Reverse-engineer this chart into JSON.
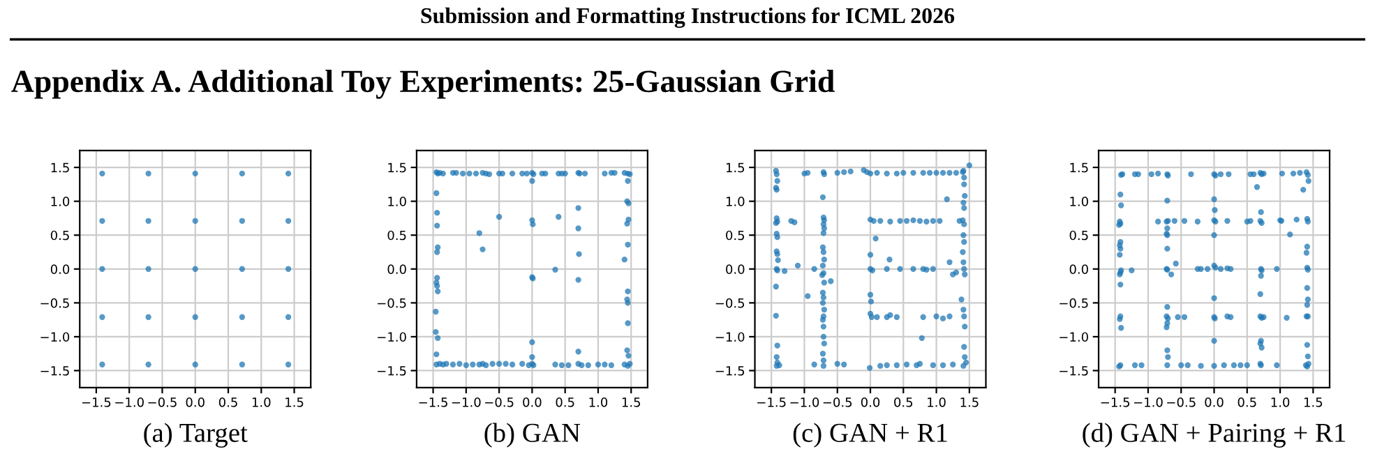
{
  "chart_data": [
    {
      "type": "scatter",
      "xlabel": "(a) Target",
      "annotations": [
        "Submission and Formatting Instructions for ICML 2026",
        "Appendix A. Additional Toy Experiments: 25-Gaussian Grid"
      ],
      "xlim": [
        -1.75,
        1.75
      ],
      "ylim": [
        -1.75,
        1.75
      ],
      "xticks": [
        {
          "value": -1.5,
          "label": "−1.5"
        },
        {
          "value": -1.0,
          "label": "−1.0"
        },
        {
          "value": -0.5,
          "label": "−0.5"
        },
        {
          "value": 0,
          "label": "0.0"
        },
        {
          "value": 0.5,
          "label": "0.5"
        },
        {
          "value": 1,
          "label": "1.0"
        },
        {
          "value": 1.5,
          "label": "1.5"
        }
      ],
      "yticks": [
        {
          "value": -1.5,
          "label": "−1.5"
        },
        {
          "value": -1.0,
          "label": "−1.0"
        },
        {
          "value": -0.5,
          "label": "−0.5"
        },
        {
          "value": 0,
          "label": "0.0"
        },
        {
          "value": 0.5,
          "label": "0.5"
        },
        {
          "value": 1,
          "label": "1.0"
        },
        {
          "value": 1.5,
          "label": "1.5"
        }
      ],
      "grid": true,
      "marker": "circle",
      "series": [
        {
          "color": "#1f77b4",
          "x": [
            -1.41,
            -0.71,
            0,
            0.71,
            1.41,
            -1.41,
            -0.71,
            0,
            0.71,
            1.41,
            -1.41,
            -0.71,
            0,
            0.71,
            1.41,
            -1.41,
            -0.71,
            0,
            0.71,
            1.41,
            -1.41,
            -0.71,
            0,
            0.71,
            1.41
          ],
          "values": [
            1.41,
            1.41,
            1.41,
            1.41,
            1.41,
            0.71,
            0.71,
            0.71,
            0.71,
            0.71,
            0,
            0,
            0,
            0,
            0,
            -0.71,
            -0.71,
            -0.71,
            -0.71,
            -0.71,
            -1.41,
            -1.41,
            -1.41,
            -1.41,
            -1.41
          ]
        }
      ]
    },
    {
      "type": "scatter",
      "xlabel": "(b) GAN",
      "xlim": [
        -1.75,
        1.75
      ],
      "ylim": [
        -1.75,
        1.75
      ],
      "xticks": [
        {
          "value": -1.5,
          "label": "−1.5"
        },
        {
          "value": -1.0,
          "label": "−1.0"
        },
        {
          "value": -0.5,
          "label": "−0.5"
        },
        {
          "value": 0,
          "label": "0.0"
        },
        {
          "value": 0.5,
          "label": "0.5"
        },
        {
          "value": 1,
          "label": "1.0"
        },
        {
          "value": 1.5,
          "label": "1.5"
        }
      ],
      "yticks": [
        {
          "value": -1.5,
          "label": "−1.5"
        },
        {
          "value": -1.0,
          "label": "−1.0"
        },
        {
          "value": -0.5,
          "label": "−0.5"
        },
        {
          "value": 0,
          "label": "0.0"
        },
        {
          "value": 0.5,
          "label": "0.5"
        },
        {
          "value": 1,
          "label": "1.0"
        },
        {
          "value": 1.5,
          "label": "1.5"
        }
      ],
      "grid": true,
      "marker": "circle",
      "series": [
        {
          "color": "#1f77b4",
          "x": [
            -1.45,
            -1.43,
            -1.4,
            -1.35,
            -1.2,
            -1.15,
            -1.05,
            -0.95,
            -0.85,
            -0.75,
            -0.7,
            -0.65,
            -0.5,
            -0.45,
            -0.3,
            -0.15,
            -0.08,
            0.0,
            0.02,
            0.15,
            0.2,
            0.4,
            0.45,
            0.5,
            0.7,
            0.72,
            0.8,
            1.1,
            1.2,
            1.25,
            1.4,
            1.45,
            1.48,
            -1.45,
            -1.4,
            -1.35,
            -1.3,
            -1.2,
            -1.1,
            -1.0,
            -0.9,
            -0.8,
            -0.75,
            -0.7,
            -0.6,
            -0.5,
            -0.4,
            -0.3,
            -0.15,
            -0.05,
            0.0,
            0.02,
            0.35,
            0.45,
            0.55,
            0.7,
            0.75,
            0.85,
            1.0,
            1.1,
            1.2,
            1.4,
            1.45,
            1.48,
            -1.45,
            -1.44,
            -1.44,
            -1.43,
            -1.44,
            -1.44,
            -1.45,
            -1.44,
            -1.43,
            -1.46,
            -1.46,
            -1.43,
            -1.45,
            1.45,
            1.44,
            1.46,
            1.46,
            1.44,
            1.45,
            1.4,
            1.45,
            1.44,
            1.45,
            1.45,
            1.44,
            1.46,
            0.0,
            0.0,
            0.01,
            0.0,
            0.01,
            0.0,
            0.0,
            0.7,
            0.7,
            0.71,
            0.7,
            0.7,
            -0.5,
            -0.8,
            -0.75,
            0.4,
            0.35
          ],
          "values": [
            1.43,
            1.41,
            1.42,
            1.41,
            1.42,
            1.42,
            1.41,
            1.41,
            1.41,
            1.42,
            1.41,
            1.4,
            1.41,
            1.41,
            1.41,
            1.41,
            1.41,
            1.42,
            1.4,
            1.41,
            1.41,
            1.41,
            1.41,
            1.41,
            1.42,
            1.41,
            1.41,
            1.41,
            1.42,
            1.42,
            1.42,
            1.41,
            1.4,
            -1.41,
            -1.4,
            -1.41,
            -1.4,
            -1.41,
            -1.4,
            -1.42,
            -1.41,
            -1.41,
            -1.4,
            -1.42,
            -1.4,
            -1.4,
            -1.4,
            -1.41,
            -1.4,
            -1.42,
            -1.4,
            -1.42,
            -1.41,
            -1.42,
            -1.42,
            -1.4,
            -1.42,
            -1.42,
            -1.41,
            -1.41,
            -1.42,
            -1.41,
            -1.43,
            -1.4,
            1.12,
            0.83,
            0.64,
            0.32,
            0.25,
            -0.13,
            -0.2,
            -0.25,
            -0.33,
            -0.63,
            -0.93,
            -1.02,
            -1.26,
            1.3,
            1.0,
            0.97,
            0.73,
            0.67,
            0.36,
            0.14,
            -0.33,
            -0.45,
            -0.5,
            -0.8,
            -1.2,
            -1.28,
            1.3,
            0.72,
            0.66,
            -0.12,
            -0.14,
            -1.08,
            -1.3,
            0.9,
            0.6,
            0.22,
            -0.16,
            -1.22,
            0.77,
            0.53,
            0.29,
            0.77,
            -0.01
          ]
        }
      ]
    },
    {
      "type": "scatter",
      "xlabel": "(c) GAN + R1",
      "xlim": [
        -1.75,
        1.75
      ],
      "ylim": [
        -1.75,
        1.75
      ],
      "xticks": [
        {
          "value": -1.5,
          "label": "−1.5"
        },
        {
          "value": -1.0,
          "label": "−1.0"
        },
        {
          "value": -0.5,
          "label": "−0.5"
        },
        {
          "value": 0,
          "label": "0.0"
        },
        {
          "value": 0.5,
          "label": "0.5"
        },
        {
          "value": 1,
          "label": "1.0"
        },
        {
          "value": 1.5,
          "label": "1.5"
        }
      ],
      "yticks": [
        {
          "value": -1.5,
          "label": "−1.5"
        },
        {
          "value": -1.0,
          "label": "−1.0"
        },
        {
          "value": -0.5,
          "label": "−0.5"
        },
        {
          "value": 0,
          "label": "0.0"
        },
        {
          "value": 0.5,
          "label": "0.5"
        },
        {
          "value": 1,
          "label": "1.0"
        },
        {
          "value": 1.5,
          "label": "1.5"
        }
      ],
      "grid": true,
      "marker": "circle",
      "series": [
        {
          "color": "#1f77b4",
          "x": [
            -1.43,
            -1.42,
            -1.41,
            -1.43,
            -1.42,
            -1.42,
            -1.41,
            -1.43,
            -1.42,
            -1.41,
            -1.42,
            -1.41,
            -1.4,
            -1.42,
            -1.41,
            -1.43,
            -1.43,
            -1.41,
            -1.42,
            -1.41,
            -1.42,
            -1.38,
            -0.71,
            -0.7,
            -0.72,
            -0.71,
            -0.7,
            -0.71,
            -0.7,
            -0.71,
            -0.72,
            -0.71,
            -0.7,
            -0.72,
            -0.71,
            -0.73,
            -0.7,
            -0.72,
            -0.71,
            -0.72,
            -0.7,
            -0.71,
            -0.72,
            -0.71,
            -0.71,
            -0.7,
            -0.72,
            -0.71,
            -0.71,
            -1.2,
            -1.15,
            -1.3,
            -1.1,
            -0.85,
            -0.95,
            -0.6,
            -0.85,
            -0.5,
            -0.4,
            -1.0,
            -0.95,
            -0.5,
            -0.4,
            -0.3,
            -0.1,
            -0.05,
            -0.01,
            0.0,
            0.1,
            0.25,
            0.4,
            0.5,
            0.65,
            0.8,
            0.9,
            1.0,
            1.1,
            1.2,
            1.3,
            1.4,
            1.5,
            1.41,
            1.42,
            1.42,
            1.43,
            1.41,
            1.42,
            1.4,
            1.42,
            1.41,
            1.42,
            1.4,
            1.41,
            1.42,
            1.43,
            1.38,
            1.41,
            1.42,
            1.43,
            1.42,
            1.43,
            1.41,
            1.45,
            1.16,
            1.2,
            1.25,
            1.3,
            1.35,
            0.0,
            0.05,
            0.15,
            0.3,
            0.45,
            0.55,
            0.65,
            0.75,
            0.85,
            0.95,
            1.05,
            0.0,
            0.0,
            0.03,
            0.25,
            0.29,
            0.45,
            0.65,
            0.8,
            0.85,
            0.95,
            0.0,
            0.01,
            0.0,
            0.02,
            0.1,
            0.25,
            0.3,
            0.4,
            0.8,
            1.0,
            1.1,
            1.2,
            0.78,
            0.08,
            0.15,
            0.25,
            0.4,
            0.55,
            0.7,
            0.75,
            0.95,
            1.1,
            1.25
          ],
          "values": [
            1.45,
            1.4,
            1.3,
            1.2,
            1.17,
            0.75,
            0.7,
            0.68,
            0.52,
            0.47,
            0.26,
            0.22,
            0.13,
            0.0,
            -0.02,
            -0.26,
            -0.69,
            -1.13,
            -1.3,
            -1.38,
            -1.43,
            -1.42,
            1.43,
            1.4,
            1.06,
            0.76,
            0.72,
            0.66,
            0.6,
            0.53,
            0.32,
            0.25,
            0.14,
            0.05,
            -0.06,
            -0.09,
            -0.2,
            -0.35,
            -0.42,
            -0.5,
            -0.6,
            -0.7,
            -0.75,
            -0.85,
            -1.0,
            -1.1,
            -1.25,
            -1.35,
            -1.43,
            0.71,
            0.69,
            -0.03,
            0.05,
            0.0,
            -0.4,
            -0.18,
            -1.41,
            -1.4,
            -1.41,
            1.41,
            1.42,
            1.42,
            1.43,
            1.44,
            1.46,
            1.43,
            -1.46,
            1.41,
            1.42,
            1.41,
            1.41,
            1.42,
            1.42,
            1.42,
            1.42,
            1.42,
            1.42,
            1.42,
            1.42,
            1.43,
            1.53,
            1.45,
            1.35,
            1.25,
            1.08,
            0.98,
            0.9,
            0.72,
            0.66,
            0.5,
            0.4,
            0.25,
            0.1,
            0.0,
            -0.08,
            -0.45,
            -0.6,
            -0.7,
            -0.85,
            -1.15,
            -1.3,
            -1.43,
            -1.38,
            1.03,
            0.1,
            -0.08,
            -0.05,
            0.71,
            0.73,
            0.71,
            0.71,
            0.7,
            0.71,
            0.71,
            0.72,
            0.71,
            0.7,
            0.71,
            0.71,
            0.0,
            0.21,
            -0.02,
            0.0,
            0.14,
            0.0,
            0.0,
            0.0,
            -0.01,
            0.0,
            -0.38,
            -0.48,
            -0.66,
            -0.71,
            -0.71,
            -0.71,
            -0.68,
            -0.71,
            -0.71,
            -0.7,
            -0.73,
            -0.7,
            -1.02,
            0.45,
            -1.43,
            -1.42,
            -1.42,
            -1.41,
            -1.42,
            -1.4,
            -1.42,
            -1.42,
            -1.41
          ]
        }
      ]
    },
    {
      "type": "scatter",
      "xlabel": "(d) GAN + Pairing + R1",
      "xlim": [
        -1.75,
        1.75
      ],
      "ylim": [
        -1.75,
        1.75
      ],
      "xticks": [
        {
          "value": -1.5,
          "label": "−1.5"
        },
        {
          "value": -1.0,
          "label": "−1.0"
        },
        {
          "value": -0.5,
          "label": "−0.5"
        },
        {
          "value": 0,
          "label": "0.0"
        },
        {
          "value": 0.5,
          "label": "0.5"
        },
        {
          "value": 1,
          "label": "1.0"
        },
        {
          "value": 1.5,
          "label": "1.5"
        }
      ],
      "yticks": [
        {
          "value": -1.5,
          "label": "−1.5"
        },
        {
          "value": -1.0,
          "label": "−1.0"
        },
        {
          "value": -0.5,
          "label": "−0.5"
        },
        {
          "value": 0,
          "label": "0.0"
        },
        {
          "value": 0.5,
          "label": "0.5"
        },
        {
          "value": 1,
          "label": "1.0"
        },
        {
          "value": 1.5,
          "label": "1.5"
        }
      ],
      "grid": true,
      "marker": "circle",
      "series": [
        {
          "color": "#1f77b4",
          "x": [
            -1.41,
            -1.39,
            -1.2,
            -1.15,
            -0.95,
            -0.85,
            -0.71,
            -0.7,
            -0.35,
            0.0,
            0.02,
            0.1,
            0.22,
            0.55,
            0.6,
            0.7,
            0.72,
            0.75,
            1.03,
            1.2,
            1.3,
            1.4,
            1.42,
            0.65,
            1.35,
            1.43,
            -1.42,
            -1.41,
            -1.43,
            -1.42,
            -1.44,
            -1.42,
            -1.43,
            -1.42,
            -1.43,
            -1.41,
            -1.42,
            -1.43,
            -1.42,
            -1.42,
            -1.43,
            -1.41,
            -1.44,
            -1.42,
            -1.25,
            -0.71,
            -0.72,
            -0.7,
            -0.71,
            -0.72,
            -0.71,
            -0.71,
            -0.72,
            -0.71,
            -0.65,
            -0.71,
            -0.72,
            -0.7,
            -0.71,
            -0.72,
            -0.71,
            -0.7,
            -0.71,
            -0.58,
            -0.6,
            -0.85,
            -0.45,
            -0.55,
            -0.45,
            0.0,
            0.01,
            0.0,
            0.02,
            0.0,
            0.0,
            0.02,
            -0.1,
            -0.2,
            -0.25,
            0.1,
            0.2,
            0.25,
            0.0,
            0.0,
            0.01,
            0.0,
            0.0,
            0.2,
            0.2,
            0.25,
            -0.25,
            0.71,
            0.7,
            0.72,
            0.71,
            0.72,
            0.71,
            0.7,
            0.7,
            0.72,
            0.75,
            0.71,
            0.7,
            0.72,
            0.71,
            0.7,
            0.5,
            0.55,
            0.95,
            1.1,
            1.0,
            1.02,
            1.15,
            1.25,
            1.41,
            1.42,
            1.41,
            1.4,
            1.41,
            1.42,
            1.41,
            1.42,
            1.41,
            1.4,
            1.42,
            1.41,
            1.42,
            1.41,
            1.39,
            1.43,
            -1.2,
            -1.1,
            -0.5,
            -0.4,
            -0.2,
            0.15,
            0.3,
            0.4,
            0.5,
            0.95
          ],
          "values": [
            1.39,
            1.4,
            1.4,
            1.4,
            1.4,
            1.41,
            1.4,
            1.38,
            1.4,
            1.4,
            1.38,
            1.4,
            1.4,
            1.4,
            1.4,
            1.42,
            1.4,
            1.41,
            1.41,
            1.41,
            1.42,
            1.43,
            1.39,
            1.21,
            1.17,
            1.3,
            1.1,
            0.94,
            0.7,
            0.67,
            0.65,
            0.4,
            0.35,
            0.3,
            0.21,
            -0.02,
            -0.05,
            -0.08,
            -0.23,
            -0.7,
            -0.74,
            -0.87,
            -1.44,
            -1.42,
            -0.02,
            1.01,
            0.7,
            0.71,
            0.6,
            0.52,
            0.5,
            0.3,
            0.0,
            -0.01,
            -0.08,
            -0.56,
            -0.7,
            -0.73,
            -0.8,
            -0.86,
            -1.2,
            -1.3,
            -1.42,
            0.08,
            0.71,
            0.7,
            0.71,
            -0.71,
            -0.71,
            1.03,
            0.87,
            0.72,
            0.7,
            0.5,
            0.05,
            0.02,
            0.0,
            0.0,
            0.0,
            0.0,
            0.01,
            0.0,
            -0.43,
            -0.71,
            -0.73,
            -1.06,
            -1.43,
            0.71,
            -0.7,
            -0.71,
            0.7,
            0.84,
            0.71,
            0.68,
            0.0,
            -0.02,
            -0.1,
            -0.37,
            -0.7,
            -0.72,
            -0.71,
            -1.06,
            -1.1,
            -1.16,
            -1.42,
            -1.4,
            0.7,
            0.71,
            0.0,
            -0.72,
            0.72,
            0.71,
            0.51,
            0.73,
            0.74,
            0.7,
            0.33,
            0.24,
            0.02,
            -0.01,
            -0.28,
            -0.45,
            -0.53,
            -0.7,
            -0.7,
            -1.12,
            -1.29,
            -1.44,
            -1.42,
            -1.4,
            -1.42,
            -1.42,
            -1.42,
            -1.42,
            -1.43,
            -1.42,
            -1.42,
            -1.42,
            -1.42,
            -1.42
          ]
        }
      ]
    }
  ]
}
